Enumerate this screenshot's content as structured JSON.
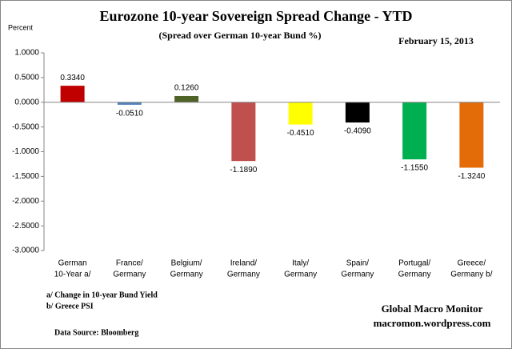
{
  "chart_data": {
    "type": "bar",
    "title": "Eurozone 10-year Sovereign Spread Change - YTD",
    "subtitle": "(Spread over German 10-year Bund %)",
    "date": "February 15,  2013",
    "y_label": "Percent",
    "categories": [
      [
        "German",
        "10-Year a/"
      ],
      [
        "France/",
        "Germany"
      ],
      [
        "Belgium/",
        "Germany"
      ],
      [
        "Ireland/",
        "Germany"
      ],
      [
        "Italy/",
        "Germany"
      ],
      [
        "Spain/",
        "Germany"
      ],
      [
        "Portugal/",
        "Germany"
      ],
      [
        "Greece/",
        "Germany b/"
      ]
    ],
    "values": [
      0.334,
      -0.051,
      0.126,
      -1.189,
      -0.451,
      -0.409,
      -1.155,
      -1.324
    ],
    "value_labels": [
      "0.3340",
      "-0.0510",
      "0.1260",
      "-1.1890",
      "-0.4510",
      "-0.4090",
      "-1.1550",
      "-1.3240"
    ],
    "colors": [
      "#c00000",
      "#4f81bd",
      "#4f6228",
      "#c0504d",
      "#ffff00",
      "#000000",
      "#00b050",
      "#e36c09"
    ],
    "ylim": [
      -3,
      1
    ],
    "yticks": [
      {
        "value": 1,
        "label": "1.0000"
      },
      {
        "value": 0.5,
        "label": "0.5000"
      },
      {
        "value": 0,
        "label": "0.0000"
      },
      {
        "value": -0.5,
        "label": "-0.5000"
      },
      {
        "value": -1,
        "label": "-1.0000"
      },
      {
        "value": -1.5,
        "label": "-1.5000"
      },
      {
        "value": -2,
        "label": "-2.0000"
      },
      {
        "value": -2.5,
        "label": "-2.5000"
      },
      {
        "value": -3,
        "label": "-3.0000"
      }
    ],
    "grid": false,
    "notes": [
      "a/  Change in 10-year Bund Yield",
      "b/  Greece PSI"
    ],
    "source": "Data Source:  Bloomberg",
    "credit": [
      "Global Macro Monitor",
      "macromon.wordpress.com"
    ]
  }
}
